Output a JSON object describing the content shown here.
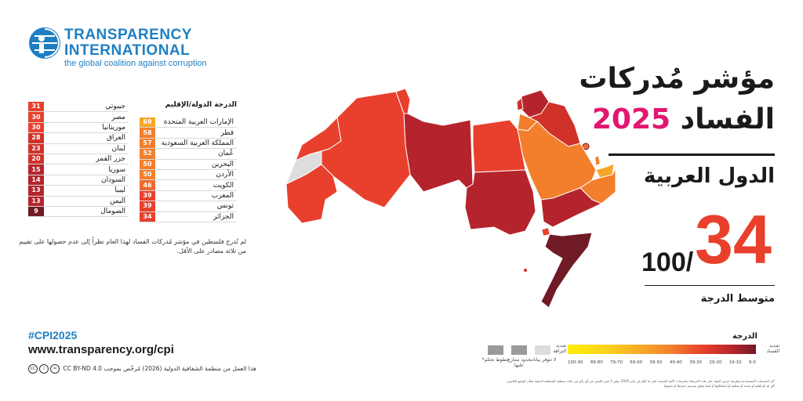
{
  "logo": {
    "line1": "TRANSPARENCY",
    "line2": "INTERNATIONAL",
    "tagline": "the global coalition against corruption",
    "icon": "ti-globe-icon"
  },
  "title": {
    "line1": "مؤشر مُدركات",
    "line2_word": "الفساد",
    "year": "2025"
  },
  "region": "الدول العربية",
  "average": {
    "score": "34",
    "out_of": "100/",
    "label": "متوسط الدرجة"
  },
  "table_header": {
    "score": "الدرجة",
    "country": "الدولة/الإقليم"
  },
  "countries_right": [
    {
      "name": "الإمارات العربية المتحدة",
      "score": "69",
      "color": "#f8a627"
    },
    {
      "name": "قطر",
      "score": "58",
      "color": "#f37e2b"
    },
    {
      "name": "المملكة العربية السعودية",
      "score": "57",
      "color": "#f37e2b"
    },
    {
      "name": "عُمان",
      "score": "52",
      "color": "#f37e2b"
    },
    {
      "name": "البحرين",
      "score": "50",
      "color": "#f37e2b"
    },
    {
      "name": "الأردن",
      "score": "50",
      "color": "#f37e2b"
    },
    {
      "name": "الكويت",
      "score": "46",
      "color": "#ef6a2e"
    },
    {
      "name": "المغرب",
      "score": "39",
      "color": "#e8402c"
    },
    {
      "name": "تونس",
      "score": "39",
      "color": "#e8402c"
    },
    {
      "name": "الجزائر",
      "score": "34",
      "color": "#e8402c"
    }
  ],
  "countries_left": [
    {
      "name": "جيبوتي",
      "score": "31",
      "color": "#e8402c"
    },
    {
      "name": "مصر",
      "score": "30",
      "color": "#e8402c"
    },
    {
      "name": "موريتانيا",
      "score": "30",
      "color": "#e8402c"
    },
    {
      "name": "العراق",
      "score": "28",
      "color": "#d03129"
    },
    {
      "name": "لبنان",
      "score": "23",
      "color": "#d03129"
    },
    {
      "name": "جزر القمر",
      "score": "20",
      "color": "#d03129"
    },
    {
      "name": "سوريا",
      "score": "15",
      "color": "#b5242c"
    },
    {
      "name": "السودان",
      "score": "14",
      "color": "#b5242c"
    },
    {
      "name": "ليبيا",
      "score": "13",
      "color": "#b5242c"
    },
    {
      "name": "اليمن",
      "score": "13",
      "color": "#b5242c"
    },
    {
      "name": "الصومال",
      "score": "9",
      "color": "#701a25"
    }
  ],
  "note": "لم تُدرج فلسطين في مؤشر مُدركات الفساد لهذا العام نظراً إلى عدم حصولها على تقييم من ثلاثة مصادر على الأقل.",
  "footer": {
    "hashtag": "#CPI2025",
    "url": "www.transparency.org/cpi",
    "license": "CC BY-ND 4.0  هذا العمل من منظمة الشفافية الدولية (2026) مُرخّص بموجب"
  },
  "legend": {
    "title": "الدرجة",
    "high_label": "شديد الفساد",
    "low_label": "شديد النزاهة",
    "ticks": [
      "100-90",
      "89-80",
      "79-70",
      "69-60",
      "59-50",
      "49-40",
      "39-30",
      "29-20",
      "19-10",
      "9-0"
    ],
    "no_data": "لا تتوفر بيانات",
    "disputed": "حدود متنازع عليها",
    "control_lines": "خطوط تحكم*",
    "no_data_color": "#dddddd",
    "disputed_color": "#9a9a9a"
  },
  "fine_print": "*إن التسميات المستخدمة وطريقة عرض المواد على هذه الخريطة ممارسات الأمم المتحدة على ما عُلِمَ في يناير 2026. وهي لا تعني التعبير عن أي رأي من جانب منظمة الشفافية الدولية بشأن الوضع القانوني لأي بلد أو إقليم أو مدينة أو منطقة أو لسلطاتها أو فيما يتعلق بترسيم حدودها أو تخومها."
}
